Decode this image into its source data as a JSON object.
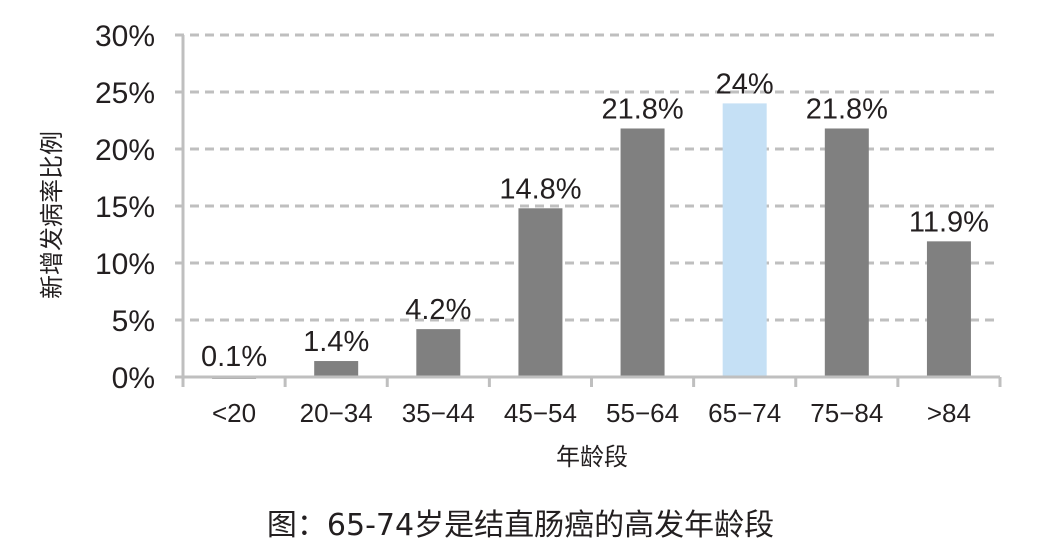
{
  "chart_data": {
    "type": "bar",
    "title": "",
    "caption": "图：65-74岁是结直肠癌的高发年龄段",
    "xlabel": "年龄段",
    "ylabel": "新增发病率比例",
    "categories": [
      "<20",
      "20-34",
      "35-44",
      "45-54",
      "55-64",
      "65-74",
      "75-84",
      ">84"
    ],
    "values": [
      0.1,
      1.4,
      4.2,
      14.8,
      21.8,
      24,
      21.8,
      11.9
    ],
    "data_labels": [
      "0.1%",
      "1.4%",
      "4.2%",
      "14.8%",
      "21.8%",
      "24%",
      "21.8%",
      "11.9%"
    ],
    "highlight_index": 5,
    "ylim": [
      0,
      30
    ],
    "yticks": [
      0,
      5,
      10,
      15,
      20,
      25,
      30
    ],
    "ytick_labels": [
      "0%",
      "5%",
      "10%",
      "15%",
      "20%",
      "25%",
      "30%"
    ],
    "grid": true,
    "grid_style": "dashed",
    "legend": null,
    "colors": {
      "bar": "#808080",
      "highlight": "#c5e0f5",
      "grid": "#bfbfbf",
      "axis": "#bfbfbf",
      "text": "#231f20"
    }
  }
}
